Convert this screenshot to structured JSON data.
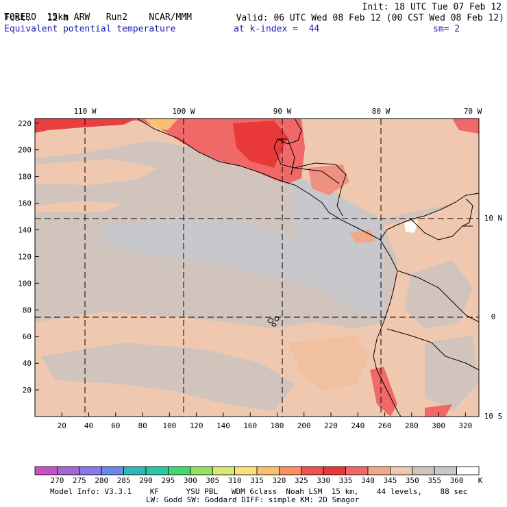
{
  "header": {
    "model": "TORERO",
    "resolution": "15km ARW",
    "run": "Run2",
    "org": "NCAR/MMM",
    "init": "Init: 18 UTC Tue 07 Feb 12",
    "fcst_label": "Fcst.",
    "fcst_value": "12 h",
    "valid": "Valid: 06 UTC Wed 08 Feb 12 (00 CST Wed 08 Feb 12)",
    "field": "Equivalent potential temperature",
    "level": "at k-index =  44",
    "smooth": "sm= 2"
  },
  "axes": {
    "x_ticks": [
      "20",
      "40",
      "60",
      "80",
      "100",
      "120",
      "140",
      "160",
      "180",
      "200",
      "220",
      "240",
      "260",
      "280",
      "300",
      "320"
    ],
    "y_ticks": [
      "20",
      "40",
      "60",
      "80",
      "100",
      "120",
      "140",
      "160",
      "180",
      "200",
      "220"
    ],
    "lon_labels": [
      "110 W",
      "100 W",
      "90 W",
      "80 W",
      "70 W"
    ],
    "lat_labels": [
      "10 N",
      "0",
      "10 S"
    ]
  },
  "colorbar": {
    "unit": "K",
    "levels": [
      "270",
      "275",
      "280",
      "285",
      "290",
      "295",
      "300",
      "305",
      "310",
      "315",
      "320",
      "325",
      "330",
      "335",
      "340",
      "345",
      "350",
      "355",
      "360"
    ],
    "colors": [
      "#c850c8",
      "#a068d0",
      "#8a78e8",
      "#6a88e8",
      "#30b8b8",
      "#28c8a0",
      "#40d870",
      "#98e060",
      "#d8e870",
      "#f8e078",
      "#f8c070",
      "#f89060",
      "#f05050",
      "#e83838",
      "#f06868",
      "#f0a888",
      "#f0c8b0",
      "#d0c4bc",
      "#c8c8cc",
      "#ffffff"
    ]
  },
  "footer": {
    "line1": "Model Info: V3.3.1    KF      YSU PBL   WDM 6class  Noah LSM  15 km,    44 levels,    88 sec",
    "line2": "LW: Godd SW: Goddard DIFF: simple KM: 2D Smagor"
  }
}
